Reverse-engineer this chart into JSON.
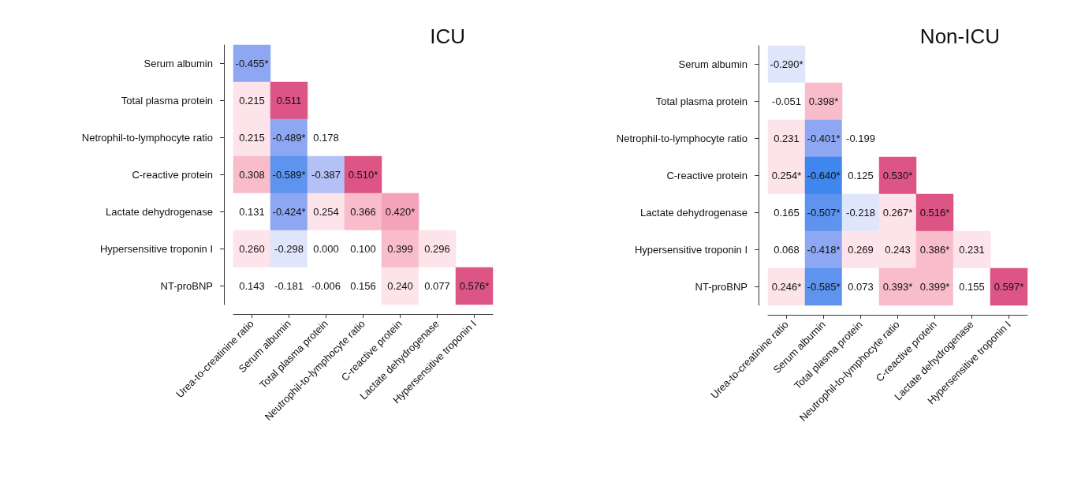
{
  "chart_data": [
    {
      "type": "heatmap",
      "title": "ICU",
      "categories": [
        "Urea-to-creatinine ratio",
        "Serum albumin",
        "Total plasma protein",
        "Neutrophil-to-lymphocyte ratio",
        "C-reactive protein",
        "Lactate dehydrogenase",
        "Hypersensitive troponin I"
      ],
      "y_categories": [
        "Serum albumin",
        "Total plasma protein",
        "Netrophil-to-lymphocyte ratio",
        "C-reactive protein",
        "Lactate dehydrogenase",
        "Hypersensitive troponin I",
        "NT-proBNP"
      ],
      "cells": [
        [
          -0.455,
          null,
          null,
          null,
          null,
          null,
          null
        ],
        [
          0.215,
          0.511,
          null,
          null,
          null,
          null,
          null
        ],
        [
          0.215,
          -0.489,
          0.178,
          null,
          null,
          null,
          null
        ],
        [
          0.308,
          -0.589,
          -0.387,
          0.51,
          null,
          null,
          null
        ],
        [
          0.131,
          -0.424,
          0.254,
          0.366,
          0.42,
          null,
          null
        ],
        [
          0.26,
          -0.298,
          0.0,
          0.1,
          0.399,
          0.296,
          null
        ],
        [
          0.143,
          -0.181,
          -0.006,
          0.156,
          0.24,
          0.077,
          0.576
        ]
      ],
      "cell_labels": [
        [
          "-0.455*",
          null,
          null,
          null,
          null,
          null,
          null
        ],
        [
          "0.215",
          "0.511",
          null,
          null,
          null,
          null,
          null
        ],
        [
          "0.215",
          "-0.489*",
          "0.178",
          null,
          null,
          null,
          null
        ],
        [
          "0.308",
          "-0.589*",
          "-0.387",
          "0.510*",
          null,
          null,
          null
        ],
        [
          "0.131",
          "-0.424*",
          "0.254",
          "0.366",
          "0.420*",
          null,
          null
        ],
        [
          "0.260",
          "-0.298",
          "0.000",
          "0.100",
          "0.399",
          "0.296",
          null
        ],
        [
          "0.143",
          "-0.181",
          "-0.006",
          "0.156",
          "0.240",
          "0.077",
          "0.576*"
        ]
      ]
    },
    {
      "type": "heatmap",
      "title": "Non-ICU",
      "categories": [
        "Urea-to-creatinine ratio",
        "Serum albumin",
        "Total plasma protein",
        "Neutrophil-to-lymphocyte ratio",
        "C-reactive protein",
        "Lactate dehydrogenase",
        "Hypersensitive troponin I"
      ],
      "y_categories": [
        "Serum albumin",
        "Total plasma protein",
        "Netrophil-to-lymphocyte ratio",
        "C-reactive protein",
        "Lactate dehydrogenase",
        "Hypersensitive troponin I",
        "NT-proBNP"
      ],
      "cells": [
        [
          -0.29,
          null,
          null,
          null,
          null,
          null,
          null
        ],
        [
          -0.051,
          0.398,
          null,
          null,
          null,
          null,
          null
        ],
        [
          0.231,
          -0.401,
          -0.199,
          null,
          null,
          null,
          null
        ],
        [
          0.254,
          -0.64,
          0.125,
          0.53,
          null,
          null,
          null
        ],
        [
          0.165,
          -0.507,
          -0.218,
          0.267,
          0.516,
          null,
          null
        ],
        [
          0.068,
          -0.418,
          0.269,
          0.243,
          0.386,
          0.231,
          null
        ],
        [
          0.246,
          -0.585,
          0.073,
          0.393,
          0.399,
          0.155,
          0.597
        ]
      ],
      "cell_labels": [
        [
          "-0.290*",
          null,
          null,
          null,
          null,
          null,
          null
        ],
        [
          "-0.051",
          "0.398*",
          null,
          null,
          null,
          null,
          null
        ],
        [
          "0.231",
          "-0.401*",
          "-0.199",
          null,
          null,
          null,
          null
        ],
        [
          "0.254*",
          "-0.640*",
          "0.125",
          "0.530*",
          null,
          null,
          null
        ],
        [
          "0.165",
          "-0.507*",
          "-0.218",
          "0.267*",
          "0.516*",
          null,
          null
        ],
        [
          "0.068",
          "-0.418*",
          "0.269",
          "0.243",
          "0.386*",
          "0.231",
          null
        ],
        [
          "0.246*",
          "-0.585*",
          "0.073",
          "0.393*",
          "0.399*",
          "0.155",
          "0.597*"
        ]
      ]
    }
  ]
}
